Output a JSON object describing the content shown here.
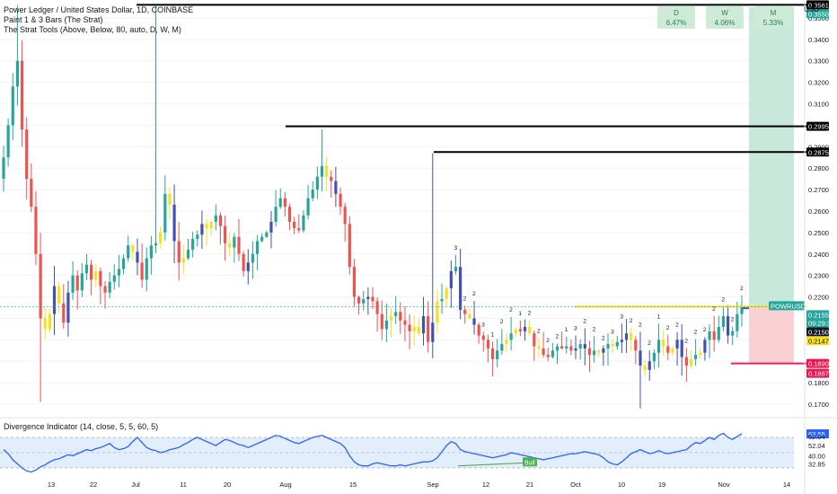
{
  "legend": {
    "symbol": "Power Ledger / United States Dollar, 1D, COINBASE",
    "ind1": "Paint 1 & 3 Bars (The Strat)",
    "ind2": "The Strat Tools (Above, Below, 80, auto, D, W, M)",
    "osc": "Divergence Indicator (14, close, 5, 5, 60, 5)"
  },
  "timeframes": [
    {
      "label": "D",
      "pct": "6.47%"
    },
    {
      "label": "W",
      "pct": "4.06%"
    },
    {
      "label": "M",
      "pct": "5.33%"
    }
  ],
  "currency": "USD",
  "colors": {
    "up": "#26a69a",
    "down": "#ef5350",
    "blue": "#3f51b5",
    "yellow": "#f7e01d",
    "osc": "#2962ff",
    "bull": "#4caf50"
  },
  "chart_data": {
    "type": "candlestick",
    "ylim": [
      0.165,
      0.3575
    ],
    "y_ticks": [
      "0.3500",
      "0.3400",
      "0.3300",
      "0.3200",
      "0.3100",
      "0.3000",
      "0.2900",
      "0.2800",
      "0.2700",
      "0.2600",
      "0.2500",
      "0.2400",
      "0.2300",
      "0.2200",
      "0.2100",
      "0.2000",
      "0.1900",
      "0.1800",
      "0.1700"
    ],
    "x_ticks": [
      "13",
      "22",
      "Jul",
      "11",
      "20",
      "Aug",
      "15",
      "Sep",
      "12",
      "21",
      "Oct",
      "10",
      "19",
      "Nov",
      "14"
    ],
    "price_labels": [
      {
        "text": "0.3561",
        "kind": "black"
      },
      {
        "text": "0.3550",
        "kind": "green"
      },
      {
        "text": "0.2995",
        "kind": "black"
      },
      {
        "text": "0.2875",
        "kind": "black"
      },
      {
        "text": "POWRUSD",
        "kind": "green"
      },
      {
        "text": "0.2155",
        "kind": "green"
      },
      {
        "text": "09:29:36",
        "kind": "green"
      },
      {
        "text": "0.2150",
        "kind": "dark"
      },
      {
        "text": "0.2147",
        "kind": "yellow"
      },
      {
        "text": "0.1890",
        "kind": "red"
      },
      {
        "text": "0.1887",
        "kind": "red"
      }
    ],
    "levels": [
      0.3561,
      0.2995,
      0.2875
    ],
    "target_high": 0.355,
    "stop": 0.189,
    "entry": 0.2147,
    "close": 0.2155,
    "recent_high_line": 0.2155,
    "seed": 7,
    "closes": [
      0.285,
      0.3,
      0.318,
      0.33,
      0.298,
      0.275,
      0.262,
      0.24,
      0.21,
      0.205,
      0.212,
      0.225,
      0.217,
      0.208,
      0.222,
      0.23,
      0.223,
      0.231,
      0.235,
      0.228,
      0.232,
      0.225,
      0.222,
      0.227,
      0.23,
      0.233,
      0.238,
      0.244,
      0.241,
      0.236,
      0.228,
      0.238,
      0.244,
      0.245,
      0.25,
      0.268,
      0.263,
      0.246,
      0.236,
      0.238,
      0.242,
      0.247,
      0.249,
      0.254,
      0.252,
      0.255,
      0.258,
      0.253,
      0.245,
      0.243,
      0.248,
      0.24,
      0.232,
      0.236,
      0.24,
      0.246,
      0.248,
      0.25,
      0.255,
      0.262,
      0.266,
      0.262,
      0.255,
      0.252,
      0.251,
      0.258,
      0.266,
      0.27,
      0.276,
      0.281,
      0.276,
      0.274,
      0.268,
      0.262,
      0.254,
      0.234,
      0.22,
      0.217,
      0.219,
      0.22,
      0.218,
      0.212,
      0.205,
      0.209,
      0.211,
      0.213,
      0.209,
      0.207,
      0.204,
      0.206,
      0.203,
      0.211,
      0.199,
      0.208,
      0.218,
      0.219,
      0.224,
      0.232,
      0.234,
      0.214,
      0.212,
      0.21,
      0.207,
      0.202,
      0.2,
      0.196,
      0.191,
      0.195,
      0.198,
      0.2,
      0.203,
      0.205,
      0.204,
      0.206,
      0.203,
      0.197,
      0.196,
      0.193,
      0.192,
      0.195,
      0.197,
      0.196,
      0.197,
      0.195,
      0.196,
      0.198,
      0.196,
      0.193,
      0.195,
      0.194,
      0.196,
      0.198,
      0.197,
      0.199,
      0.2,
      0.203,
      0.2,
      0.195,
      0.188,
      0.186,
      0.19,
      0.194,
      0.2,
      0.197,
      0.194,
      0.196,
      0.2,
      0.192,
      0.188,
      0.191,
      0.193,
      0.194,
      0.2,
      0.204,
      0.2,
      0.206,
      0.211,
      0.202,
      0.204,
      0.212,
      0.2155
    ],
    "osc": {
      "type": "line",
      "ylim": [
        22,
        68
      ],
      "y_ticks": [
        "63.55",
        "52.04",
        "52.04",
        "40.00",
        "32.85"
      ],
      "band": [
        30,
        60
      ],
      "last": 63.55,
      "bull_label": "Bull",
      "values": [
        48,
        44,
        38,
        34,
        30,
        27,
        26,
        28,
        31,
        33,
        36,
        38,
        39,
        41,
        43,
        42,
        44,
        46,
        48,
        47,
        49,
        50,
        52,
        54,
        50,
        48,
        49,
        51,
        56,
        60,
        55,
        50,
        48,
        47,
        45,
        46,
        48,
        49,
        50,
        53,
        55,
        58,
        60,
        58,
        56,
        54,
        52,
        55,
        58,
        57,
        55,
        53,
        52,
        50,
        52,
        54,
        56,
        58,
        60,
        62,
        61,
        59,
        57,
        55,
        54,
        56,
        58,
        60,
        61,
        62,
        60,
        58,
        56,
        54,
        50,
        42,
        36,
        33,
        32,
        32,
        34,
        35,
        34,
        33,
        32,
        32,
        33,
        32,
        33,
        34,
        35,
        36,
        36,
        37,
        40,
        46,
        52,
        56,
        54,
        48,
        46,
        45,
        44,
        43,
        42,
        41,
        40,
        41,
        42,
        43,
        45,
        44,
        43,
        42,
        41,
        40,
        39,
        38,
        39,
        40,
        41,
        42,
        43,
        44,
        44,
        45,
        46,
        45,
        44,
        43,
        40,
        36,
        34,
        33,
        36,
        40,
        44,
        46,
        48,
        46,
        44,
        45,
        47,
        45,
        44,
        45,
        46,
        47,
        48,
        52,
        55,
        54,
        57,
        60,
        58,
        62,
        64,
        60,
        58,
        61,
        63.55
      ]
    }
  }
}
